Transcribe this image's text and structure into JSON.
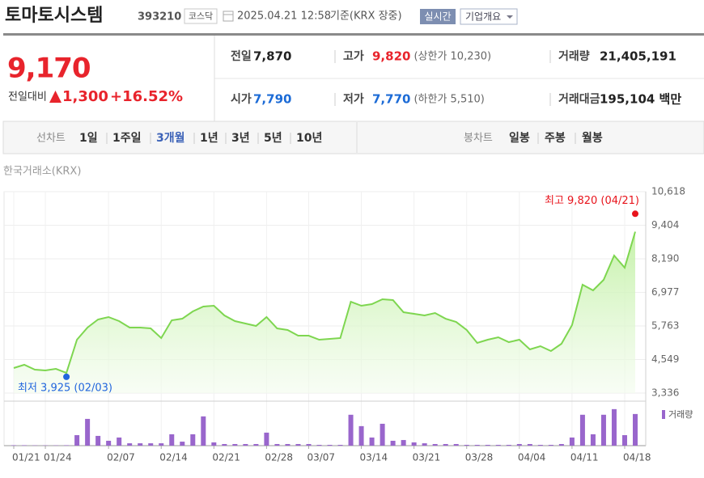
{
  "header": {
    "title": "토마토시스템",
    "code": "393210",
    "market": "코스닥",
    "datetime": "2025.04.21 12:58",
    "basis": "기준(KRX 장중)",
    "realtime": "실시간",
    "company": "기업개요"
  },
  "quote": {
    "price": "9,170",
    "change_label": "전일대비",
    "change": "1,300",
    "change_rate": "+16.52%",
    "color": "#e8242c"
  },
  "summary": {
    "rows": [
      [
        {
          "label": "전일",
          "value": "7,870",
          "color": "#222222"
        },
        {
          "label": "고가",
          "value": "9,820",
          "note": "(상한가 10,230)",
          "color": "#e8242c"
        },
        {
          "label": "거래량",
          "value": "21,405,191",
          "color": "#222222"
        }
      ],
      [
        {
          "label": "시가",
          "value": "7,790",
          "color": "#1c6bd6"
        },
        {
          "label": "저가",
          "value": "7,770",
          "note": "(하한가 5,510)",
          "color": "#1c6bd6"
        },
        {
          "label": "거래대금",
          "value": "195,104 백만",
          "color": "#222222"
        }
      ]
    ]
  },
  "tabs": {
    "line_label": "선차트",
    "line": [
      "1일",
      "1주일",
      "3개월",
      "1년",
      "3년",
      "5년",
      "10년"
    ],
    "selected_index": 2,
    "candle_label": "봉차트",
    "candle": [
      "일봉",
      "주봉",
      "월봉"
    ]
  },
  "chart_data": {
    "type": "line",
    "source": "한국거래소(KRX)",
    "categories": [
      "01/21",
      null,
      null,
      "01/24",
      null,
      null,
      null,
      null,
      null,
      "02/07",
      null,
      null,
      null,
      null,
      "02/14",
      null,
      null,
      null,
      null,
      "02/21",
      null,
      null,
      null,
      null,
      "02/28",
      null,
      null,
      null,
      "03/07",
      null,
      null,
      null,
      null,
      "03/14",
      null,
      null,
      null,
      null,
      "03/21",
      null,
      null,
      null,
      null,
      "03/28",
      null,
      null,
      null,
      null,
      "04/04",
      null,
      null,
      null,
      null,
      "04/11",
      null,
      null,
      null,
      null,
      "04/18",
      null
    ],
    "series": [
      {
        "color": "#7ed650",
        "values": [
          4243,
          4360,
          4184,
          4155,
          4213,
          4067,
          5266,
          5705,
          5997,
          6085,
          5939,
          5705,
          5705,
          5675,
          5325,
          5968,
          6026,
          6290,
          6465,
          6494,
          6143,
          5939,
          5851,
          5763,
          6085,
          5675,
          5617,
          5412,
          5412,
          5266,
          5295,
          5325,
          6640,
          6494,
          6553,
          6728,
          6699,
          6260,
          6202,
          6143,
          6231,
          6026,
          5909,
          5617,
          5149,
          5266,
          5354,
          5178,
          5266,
          4915,
          5032,
          4857,
          5120,
          5792,
          7254,
          7050,
          7430,
          8307,
          7870,
          9170
        ]
      }
    ],
    "ylim": [
      3336,
      10618
    ],
    "yticks": [
      {
        "value": 3336,
        "label": "3,336"
      },
      {
        "value": 4549,
        "label": "4,549"
      },
      {
        "value": 5763,
        "label": "5,763"
      },
      {
        "value": 6977,
        "label": "6,977"
      },
      {
        "value": 8190,
        "label": "8,190"
      },
      {
        "value": 9404,
        "label": "9,404"
      },
      {
        "value": 10618,
        "label": "10,618"
      }
    ],
    "grid": true,
    "high": {
      "label": "최고 9,820 (04/21)",
      "value": 9820,
      "color": "#e8141c"
    },
    "low": {
      "label": "최저 3,925 (02/03)",
      "value": 3925,
      "color": "#2266dd"
    },
    "volume": {
      "name": "거래량",
      "color": "#9966cc",
      "ylim": [
        0,
        29000000
      ],
      "values": [
        300000,
        300000,
        200000,
        200000,
        200000,
        300000,
        7100000,
        18100000,
        6600000,
        3300000,
        5500000,
        1600000,
        1600000,
        1600000,
        1600000,
        7700000,
        2700000,
        7700000,
        19800000,
        2200000,
        1100000,
        1100000,
        1100000,
        1100000,
        8800000,
        1100000,
        1100000,
        1100000,
        1100000,
        550000,
        550000,
        550000,
        20900000,
        13200000,
        5500000,
        14800000,
        3300000,
        3800000,
        2200000,
        1600000,
        1100000,
        1100000,
        1100000,
        550000,
        550000,
        550000,
        550000,
        550000,
        1100000,
        1100000,
        550000,
        550000,
        1100000,
        5500000,
        20900000,
        7700000,
        20900000,
        24700000,
        7100000,
        21405191
      ]
    }
  }
}
